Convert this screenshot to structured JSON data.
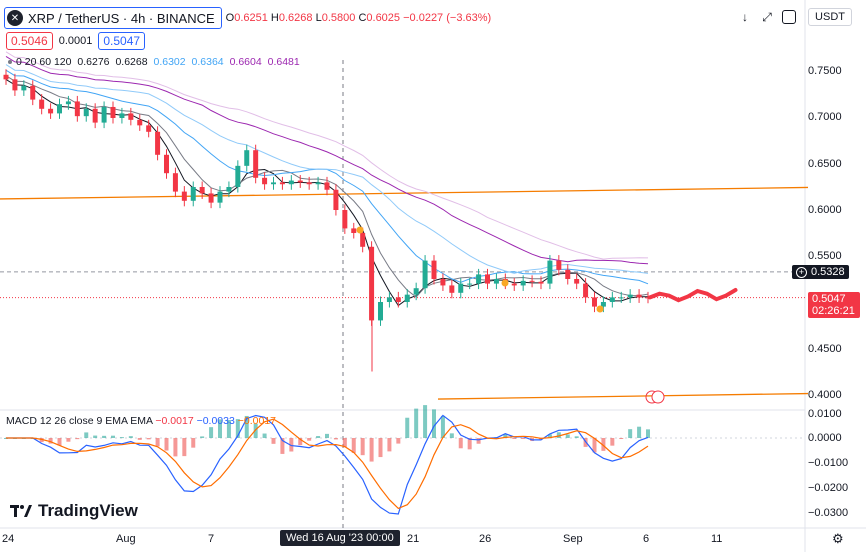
{
  "header": {
    "symbol": "XRP / TetherUS · 4h · BINANCE",
    "open_k": "O",
    "open_v": "0.6251",
    "high_k": "H",
    "high_v": "0.6268",
    "low_k": "L",
    "low_v": "0.5800",
    "close_k": "C",
    "close_v": "0.6025",
    "change": "−0.0227 (−3.63%)",
    "bid": "0.5046",
    "spread": "0.0001",
    "ask": "0.5047",
    "currency": "USDT"
  },
  "indicators": {
    "label": "0 20 60 120",
    "v1": "0.6276",
    "v2": "0.6268",
    "v3": "0.6302",
    "v4": "0.6364",
    "v5": "0.6604",
    "v6": "0.6481"
  },
  "macd": {
    "label": "MACD 12 26 close 9 EMA EMA",
    "v1": "−0.0017",
    "v2": "−0.0033",
    "v3": "−0.0017"
  },
  "price_axis": [
    "0.7500",
    "0.7000",
    "0.6500",
    "0.6000",
    "0.5500",
    "0.4500",
    "0.4000"
  ],
  "macd_axis": [
    "0.0100",
    "0.0000",
    "−0.0100",
    "−0.0200",
    "−0.0300"
  ],
  "tags": {
    "dashed": "0.5328",
    "last": "0.5047",
    "countdown": "02:26:21"
  },
  "x_labels": [
    "24",
    "Aug",
    "7",
    "21",
    "26",
    "Sep",
    "6",
    "11"
  ],
  "crosshair_date": "Wed 16 Aug '23   00:00",
  "brand": "TradingView",
  "colors": {
    "up": "#22ab94",
    "down": "#f23645",
    "ma_fast": "#131722",
    "ma_blue": "#42a5f5",
    "ma_purple": "#9c27b0",
    "trend": "#f57c00",
    "macd": "#2962ff",
    "signal": "#ff6d00"
  },
  "chart_data": {
    "type": "candlestick",
    "y_range": [
      0.42,
      0.76
    ],
    "close_path": [
      0.742,
      0.73,
      0.735,
      0.72,
      0.71,
      0.705,
      0.715,
      0.718,
      0.702,
      0.71,
      0.695,
      0.712,
      0.7,
      0.705,
      0.698,
      0.692,
      0.685,
      0.66,
      0.64,
      0.62,
      0.61,
      0.625,
      0.618,
      0.608,
      0.62,
      0.625,
      0.648,
      0.665,
      0.635,
      0.628,
      0.63,
      0.628,
      0.632,
      0.63,
      0.628,
      0.63,
      0.622,
      0.6,
      0.58,
      0.575,
      0.56,
      0.48,
      0.5,
      0.505,
      0.5,
      0.508,
      0.515,
      0.545,
      0.525,
      0.518,
      0.51,
      0.52,
      0.52,
      0.53,
      0.52,
      0.525,
      0.52,
      0.518,
      0.523,
      0.522,
      0.52,
      0.545,
      0.535,
      0.525,
      0.52,
      0.505,
      0.495,
      0.5,
      0.505,
      0.505,
      0.508,
      0.505,
      0.5047
    ],
    "projection_path": [
      0.505,
      0.509,
      0.507,
      0.502,
      0.506,
      0.512,
      0.509,
      0.503,
      0.507,
      0.513
    ]
  }
}
